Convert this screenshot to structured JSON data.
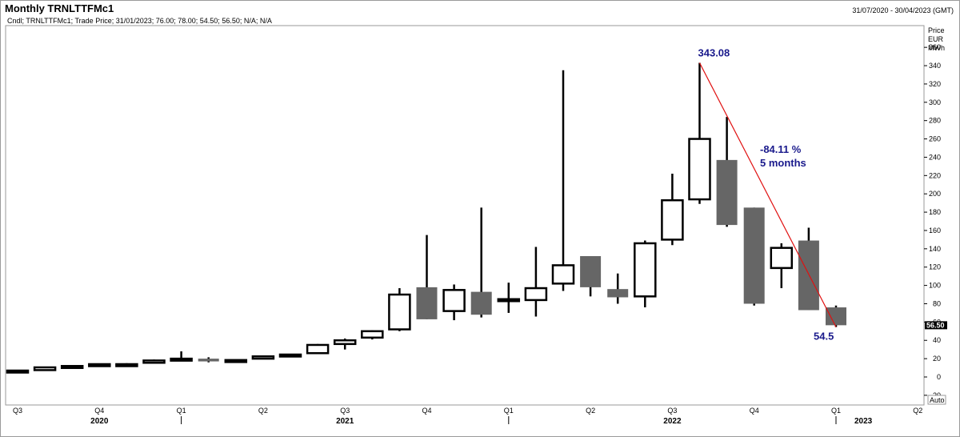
{
  "header": {
    "title": "Monthly TRNLTTFMc1",
    "date_range": "31/07/2020 - 30/04/2023 (GMT)",
    "subtitle": "Cndl; TRNLTTFMc1; Trade Price; 31/01/2023; 76.00; 78.00; 54.50; 56.50; N/A; N/A"
  },
  "axis": {
    "unit_lines": [
      "Price",
      "EUR",
      "MWh"
    ],
    "auto_label": "Auto",
    "last_price_label": "56.50"
  },
  "colors": {
    "up_fill": "#ffffff",
    "down_fill": "#666666",
    "wick": "#000000",
    "annotation": "#1a1a8c",
    "trendline": "#e01010",
    "last_price_bg": "#000000"
  },
  "chart_data": {
    "type": "candlestick",
    "title": "Monthly TRNLTTFMc1",
    "y_range": [
      -30,
      370
    ],
    "y_ticks": [
      -20,
      0,
      20,
      40,
      60,
      80,
      100,
      120,
      140,
      160,
      180,
      200,
      220,
      240,
      260,
      280,
      300,
      320,
      340,
      360
    ],
    "grid": false,
    "candles": [
      {
        "month": "2020-07",
        "open": 7,
        "high": 7.5,
        "low": 6.5,
        "close": 7
      },
      {
        "month": "2020-08",
        "open": 7.5,
        "high": 11,
        "low": 7,
        "close": 10.5
      },
      {
        "month": "2020-09",
        "open": 11,
        "high": 12.5,
        "low": 10.5,
        "close": 12
      },
      {
        "month": "2020-10",
        "open": 13,
        "high": 14.5,
        "low": 12.5,
        "close": 14
      },
      {
        "month": "2020-11",
        "open": 13.5,
        "high": 15,
        "low": 13,
        "close": 14
      },
      {
        "month": "2020-12",
        "open": 15.5,
        "high": 19,
        "low": 15,
        "close": 18
      },
      {
        "month": "2021-01",
        "open": 18.5,
        "high": 28,
        "low": 18,
        "close": 20
      },
      {
        "month": "2021-02",
        "open": 20,
        "high": 21.5,
        "low": 16,
        "close": 17
      },
      {
        "month": "2021-03",
        "open": 16.5,
        "high": 19,
        "low": 16,
        "close": 18.5
      },
      {
        "month": "2021-04",
        "open": 20,
        "high": 23.5,
        "low": 19.5,
        "close": 22.5
      },
      {
        "month": "2021-05",
        "open": 23.5,
        "high": 25,
        "low": 23,
        "close": 24.5
      },
      {
        "month": "2021-06",
        "open": 26,
        "high": 36,
        "low": 25,
        "close": 35
      },
      {
        "month": "2021-07",
        "open": 36,
        "high": 42,
        "low": 30,
        "close": 40
      },
      {
        "month": "2021-08",
        "open": 43,
        "high": 51,
        "low": 41,
        "close": 50
      },
      {
        "month": "2021-09",
        "open": 52,
        "high": 97,
        "low": 50,
        "close": 90
      },
      {
        "month": "2021-10",
        "open": 98,
        "high": 155,
        "low": 63,
        "close": 63
      },
      {
        "month": "2021-11",
        "open": 72,
        "high": 101,
        "low": 62,
        "close": 95
      },
      {
        "month": "2021-12",
        "open": 93,
        "high": 185,
        "low": 65,
        "close": 68
      },
      {
        "month": "2022-01",
        "open": 84,
        "high": 103,
        "low": 70,
        "close": 85
      },
      {
        "month": "2022-02",
        "open": 84,
        "high": 142,
        "low": 66,
        "close": 97
      },
      {
        "month": "2022-03",
        "open": 102,
        "high": 335,
        "low": 94,
        "close": 122
      },
      {
        "month": "2022-04",
        "open": 132,
        "high": 132,
        "low": 88,
        "close": 98
      },
      {
        "month": "2022-05",
        "open": 96,
        "high": 113,
        "low": 80,
        "close": 87
      },
      {
        "month": "2022-06",
        "open": 88,
        "high": 149,
        "low": 76,
        "close": 146
      },
      {
        "month": "2022-07",
        "open": 150,
        "high": 222,
        "low": 144,
        "close": 193
      },
      {
        "month": "2022-08",
        "open": 194,
        "high": 343.08,
        "low": 189,
        "close": 260
      },
      {
        "month": "2022-09",
        "open": 237,
        "high": 284,
        "low": 164,
        "close": 166
      },
      {
        "month": "2022-10",
        "open": 185,
        "high": 185,
        "low": 78,
        "close": 80
      },
      {
        "month": "2022-11",
        "open": 119,
        "high": 146,
        "low": 97,
        "close": 141
      },
      {
        "month": "2022-12",
        "open": 149,
        "high": 163,
        "low": 73,
        "close": 73
      },
      {
        "month": "2023-01",
        "open": 76,
        "high": 78,
        "low": 54.5,
        "close": 56.5
      }
    ],
    "x_quarter_labels": [
      {
        "label": "Q3",
        "month": "2020-07"
      },
      {
        "label": "Q4",
        "month": "2020-10"
      },
      {
        "label": "Q1",
        "month": "2021-01"
      },
      {
        "label": "Q2",
        "month": "2021-04"
      },
      {
        "label": "Q3",
        "month": "2021-07"
      },
      {
        "label": "Q4",
        "month": "2021-10"
      },
      {
        "label": "Q1",
        "month": "2022-01"
      },
      {
        "label": "Q2",
        "month": "2022-04"
      },
      {
        "label": "Q3",
        "month": "2022-07"
      },
      {
        "label": "Q4",
        "month": "2022-10"
      },
      {
        "label": "Q1",
        "month": "2023-01"
      },
      {
        "label": "Q2",
        "month": "2023-04"
      }
    ],
    "x_year_labels": [
      {
        "label": "2020",
        "month": "2020-10"
      },
      {
        "label": "2021",
        "month": "2021-07"
      },
      {
        "label": "2022",
        "month": "2022-07"
      },
      {
        "label": "2023",
        "month": "2023-02"
      }
    ],
    "annotations": {
      "high_label": "343.08",
      "low_label": "54.5",
      "change_label": "-84.11 %",
      "duration_label": "5 months",
      "trendline": {
        "from": {
          "month": "2022-08",
          "value": 343.08
        },
        "to": {
          "month": "2023-01",
          "value": 54.5
        }
      }
    }
  }
}
